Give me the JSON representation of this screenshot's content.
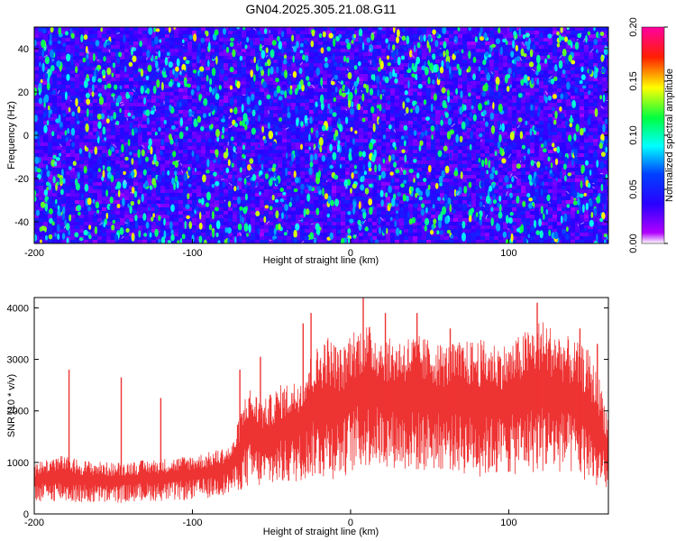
{
  "title": "GN04.2025.305.21.08.G11",
  "chart_data": [
    {
      "type": "heatmap",
      "xlabel": "Height of straight line (km)",
      "ylabel": "Frequency (Hz)",
      "xlim": [
        -200,
        163
      ],
      "ylim": [
        -50,
        50
      ],
      "xticks": [
        "-200",
        "-100",
        "0",
        "100"
      ],
      "yticks": [
        "40",
        "20",
        "0",
        "-20",
        "-40"
      ],
      "colorbar": {
        "label": "Normalized spectral amplitude",
        "range": [
          0.0,
          0.2
        ],
        "ticks": [
          "0.00",
          "0.05",
          "0.10",
          "0.15",
          "0.20"
        ],
        "colors": [
          "#ffffff",
          "#b000ff",
          "#0000ff",
          "#00ffff",
          "#00ff00",
          "#ffff00",
          "#ff0000",
          "#ff00a0"
        ]
      },
      "background_level": 0.035,
      "hotspot_levels": [
        0.07,
        0.1,
        0.13
      ]
    },
    {
      "type": "line",
      "xlabel": "Height of straight line (km)",
      "ylabel": "SNR (10 * v/v)",
      "xlim": [
        -200,
        163
      ],
      "ylim": [
        0,
        4200
      ],
      "xticks": [
        "-200",
        "-100",
        "0",
        "100"
      ],
      "yticks": [
        "4000",
        "3000",
        "2000",
        "1000",
        "0"
      ],
      "color": "#ee3333",
      "envelope": {
        "x": [
          -200,
          -185,
          -170,
          -150,
          -130,
          -110,
          -90,
          -75,
          -65,
          -55,
          -45,
          -35,
          -25,
          -15,
          -5,
          0,
          10,
          25,
          40,
          60,
          80,
          100,
          120,
          140,
          150,
          158,
          163
        ],
        "upper": [
          1000,
          1150,
          1050,
          1000,
          1050,
          1100,
          1200,
          1350,
          2500,
          2200,
          2500,
          2600,
          3100,
          3500,
          3200,
          3600,
          3700,
          3400,
          3500,
          3300,
          3400,
          3300,
          3800,
          3400,
          3200,
          2600,
          1900
        ],
        "lower": [
          200,
          250,
          200,
          200,
          250,
          250,
          300,
          400,
          500,
          500,
          550,
          600,
          700,
          650,
          700,
          800,
          900,
          900,
          800,
          850,
          700,
          750,
          800,
          750,
          600,
          400,
          200
        ]
      },
      "spikes": [
        {
          "x": -178,
          "y": 2800
        },
        {
          "x": -145,
          "y": 2650
        },
        {
          "x": -120,
          "y": 2250
        },
        {
          "x": -70,
          "y": 2800
        },
        {
          "x": -57,
          "y": 3050
        },
        {
          "x": -30,
          "y": 3700
        },
        {
          "x": -25,
          "y": 3900
        },
        {
          "x": 8,
          "y": 4200
        },
        {
          "x": 22,
          "y": 3900
        },
        {
          "x": 42,
          "y": 3900
        },
        {
          "x": 63,
          "y": 3600
        },
        {
          "x": 118,
          "y": 4100
        },
        {
          "x": 145,
          "y": 3600
        },
        {
          "x": 156,
          "y": 3300
        }
      ]
    }
  ]
}
